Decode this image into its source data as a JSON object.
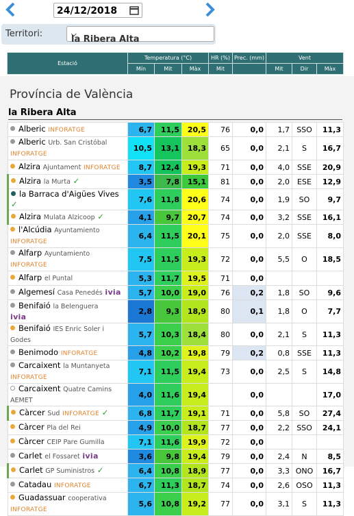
{
  "header": {
    "date": "24/12/2018",
    "territori_label": "Territori:",
    "territori_value": "la Ribera Alta"
  },
  "table": {
    "columns": {
      "station": "Estació",
      "temperature": "Temperatura (°C)",
      "humidity": "HR (%)",
      "precipitation": "Prec. (mm)",
      "wind": "Vent",
      "temp_min": "Mín",
      "temp_mit": "Mit",
      "temp_max": "Màx",
      "hr_mit": "Mit",
      "wind_mit": "Mit",
      "wind_dir": "Dir",
      "wind_max": "Màx"
    },
    "section": "Província de València",
    "group": "la Ribera Alta",
    "rows": [
      {
        "name": "Alberic",
        "place": null,
        "tag": "INFORATGE",
        "values": [
          "6,7",
          "11,5",
          "20,5",
          "76",
          "0,0",
          "1,7",
          "SSO",
          "11,3"
        ]
      },
      {
        "name": "Alberic",
        "place": "Urb. San Cristóbal",
        "tag": "INFORATGE",
        "values": [
          "10,5",
          "13,1",
          "18,3",
          "65",
          "0,0",
          "2,1",
          "S",
          "16,7"
        ]
      },
      {
        "name": "Alzira",
        "place": "Ajuntament",
        "tag": "INFORATGE",
        "values": [
          "8,7",
          "12,4",
          "19,3",
          "71",
          "0,0",
          "4,0",
          "SSE",
          "20,9"
        ]
      },
      {
        "name": "Alzira",
        "place": "la Murta",
        "tag": null,
        "values": [
          "3,5",
          "7,8",
          "15,1",
          "81",
          "0,0",
          "2,0",
          "ESE",
          "12,9"
        ]
      },
      {
        "name": "la Barraca d'Aigües Vives",
        "place": null,
        "tag": null,
        "values": [
          "7,6",
          "11,8",
          "20,6",
          "74",
          "0,0",
          "1,9",
          "SO",
          "9,7"
        ]
      },
      {
        "name": "Alzira",
        "place": "Mulata Alzicoop",
        "tag": null,
        "values": [
          "4,1",
          "9,7",
          "20,7",
          "74",
          "0,0",
          "3,2",
          "SSE",
          "16,1"
        ]
      },
      {
        "name": "l'Alcúdia",
        "place": "Ayuntamiento",
        "tag": "INFORATGE",
        "values": [
          "6,4",
          "11,5",
          "20,1",
          "75",
          "0,0",
          "2,0",
          "SSE",
          "8,0"
        ]
      },
      {
        "name": "Alfarp",
        "place": "Ayuntamiento",
        "tag": "INFORATGE",
        "values": [
          "7,5",
          "11,5",
          "19,3",
          "72",
          "0,0",
          "5,5",
          "O",
          "18,5"
        ]
      },
      {
        "name": "Alfarp",
        "place": "el Puntal",
        "tag": null,
        "values": [
          "5,3",
          "11,7",
          "19,5",
          "71",
          "0,0",
          null,
          null,
          null
        ]
      },
      {
        "name": "Algemesí",
        "place": "Casa Penedés",
        "tag": "ivia",
        "values": [
          "5,7",
          "10,0",
          "19,0",
          "76",
          "0,2",
          "1,8",
          "SO",
          "9,6"
        ]
      },
      {
        "name": "Benifaió",
        "place": "la Belenguera",
        "tag": "ivia",
        "values": [
          "2,8",
          "9,3",
          "18,9",
          "80",
          "0,1",
          "1,8",
          "O",
          "7,7"
        ]
      },
      {
        "name": "Benifaió",
        "place": "IES Enric Soler i Godes",
        "tag": null,
        "values": [
          "5,7",
          "10,3",
          "18,4",
          "80",
          "0,0",
          "2,1",
          "S",
          "11,3"
        ]
      },
      {
        "name": "Benimodo",
        "place": null,
        "tag": "INFORATGE",
        "values": [
          "4,8",
          "10,2",
          "19,8",
          "79",
          "0,2",
          "0,8",
          "SSE",
          "11,3"
        ]
      },
      {
        "name": "Carcaixent",
        "place": "la Muntanyeta",
        "tag": "INFORATGE",
        "values": [
          "7,1",
          "11,5",
          "19,4",
          "73",
          "0,0",
          "2,5",
          "S",
          "14,8"
        ]
      },
      {
        "name": "Carcaixent",
        "place": "Quatre Camins AEMET",
        "tag": null,
        "values": [
          "4,0",
          "11,6",
          "19,4",
          null,
          "0,0",
          null,
          null,
          "17,0"
        ]
      },
      {
        "name": "Càrcer",
        "place": "Sud",
        "tag": "INFORATGE",
        "values": [
          "6,8",
          "11,7",
          "19,1",
          "71",
          "0,0",
          "5,8",
          "SO",
          "27,4"
        ]
      },
      {
        "name": "Càrcer",
        "place": "Pla del Rei",
        "tag": null,
        "values": [
          "4,9",
          "10,0",
          "18,7",
          "77",
          "0,0",
          "2,2",
          "SSO",
          "24,1"
        ]
      },
      {
        "name": "Càrcer",
        "place": "CEIP Pare Gumilla",
        "tag": null,
        "values": [
          "7,1",
          "11,6",
          "19,9",
          "72",
          "0,0",
          null,
          null,
          null
        ]
      },
      {
        "name": "Carlet",
        "place": "el Fossaret",
        "tag": "ivia",
        "values": [
          "3,6",
          "9,8",
          "19,4",
          "79",
          "0,0",
          "2,4",
          "N",
          "8,5"
        ]
      },
      {
        "name": "Carlet",
        "place": "GP Suministros",
        "tag": null,
        "values": [
          "6,4",
          "10,8",
          "18,9",
          "77",
          "0,0",
          "3,3",
          "ONO",
          "16,7"
        ]
      },
      {
        "name": "Catadau",
        "place": null,
        "tag": "INFORATGE",
        "values": [
          "6,7",
          "11,3",
          "18,7",
          "74",
          "0,0",
          "2,6",
          "OSO",
          "11,3"
        ]
      },
      {
        "name": "Guadassuar",
        "place": "cooperativa",
        "tag": "INFORATGE",
        "values": [
          "5,6",
          "10,8",
          "19,2",
          "77",
          "0,0",
          "3,1",
          "S",
          "11,3"
        ]
      }
    ]
  }
}
